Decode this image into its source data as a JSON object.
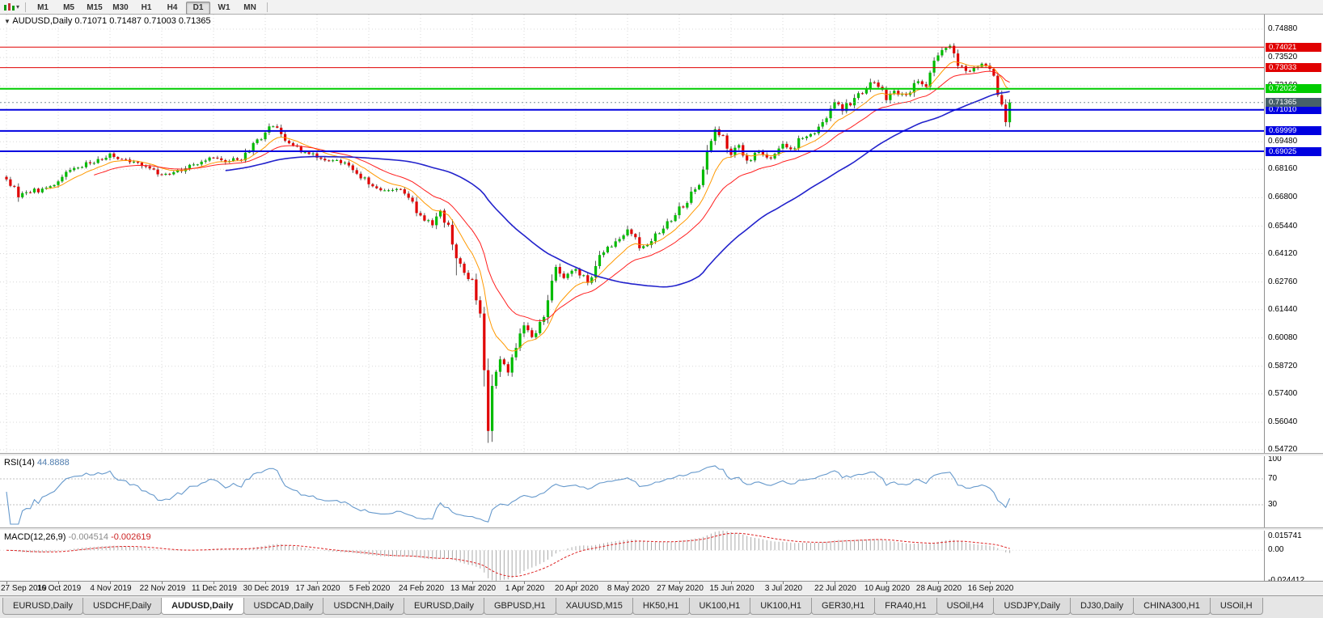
{
  "toolbar": {
    "timeframes": [
      "M1",
      "M5",
      "M15",
      "M30",
      "H1",
      "H4",
      "D1",
      "W1",
      "MN"
    ],
    "active_timeframe": "D1"
  },
  "chart": {
    "symbol": "AUDUSD,Daily",
    "ohlc": "0.71071 0.71487 0.71003 0.71365",
    "y_max": 0.7488,
    "y_min": 0.5472,
    "plain_price_labels": [
      "0.74880",
      "0.73520",
      "0.72160",
      "0.69480",
      "0.68160",
      "0.66800",
      "0.65440",
      "0.64120",
      "0.62760",
      "0.61440",
      "0.60080",
      "0.58720",
      "0.57400",
      "0.56040",
      "0.54720"
    ],
    "lines": [
      {
        "price": 0.74021,
        "label": "0.74021",
        "color": "#e00000",
        "width": 1
      },
      {
        "price": 0.73033,
        "label": "0.73033",
        "color": "#e00000",
        "width": 1
      },
      {
        "price": 0.72022,
        "label": "0.72022",
        "color": "#00cc00",
        "width": 2
      },
      {
        "price": 0.7101,
        "label": "0.71010",
        "color": "#0000e0",
        "width": 2
      },
      {
        "price": 0.69999,
        "label": "0.69999",
        "color": "#0000e0",
        "width": 2
      },
      {
        "price": 0.69025,
        "label": "0.69025",
        "color": "#0000e0",
        "width": 2
      }
    ],
    "bid_line": {
      "price": 0.71365,
      "label": "0.71365",
      "color": "#46606a"
    }
  },
  "rsi": {
    "name": "RSI(14)",
    "value": "44.8888",
    "axis": [
      "100",
      "70",
      "30"
    ],
    "levels": [
      70,
      30
    ],
    "color": "#6699cc"
  },
  "macd": {
    "name": "MACD(12,26,9)",
    "main_value": "-0.004514",
    "signal_value": "-0.002619",
    "range": [
      -0.024412,
      0.015741
    ],
    "axis": [
      [
        "0.015741",
        0.015741
      ],
      [
        "0.00",
        0
      ],
      [
        "-0.024412",
        -0.024412
      ]
    ]
  },
  "tabs": {
    "items": [
      "EURUSD,Daily",
      "USDCHF,Daily",
      "AUDUSD,Daily",
      "USDCAD,Daily",
      "USDCNH,Daily",
      "EURUSD,Daily",
      "GBPUSD,H1",
      "XAUUSD,M15",
      "HK50,H1",
      "UK100,H1",
      "UK100,H1",
      "GER30,H1",
      "FRA40,H1",
      "USOil,H4",
      "USDJPY,Daily",
      "DJ30,Daily",
      "CHINA300,H1",
      "USOil,H"
    ],
    "active_index": 2
  },
  "chart_data": {
    "type": "candlestick",
    "symbol": "AUDUSD",
    "timeframe": "Daily",
    "n_candles": 253,
    "y_range": [
      0.5472,
      0.7488
    ],
    "x_tick_labels": [
      "27 Sep 2019",
      "16 Oct 2019",
      "4 Nov 2019",
      "22 Nov 2019",
      "11 Dec 2019",
      "30 Dec 2019",
      "17 Jan 2020",
      "5 Feb 2020",
      "24 Feb 2020",
      "13 Mar 2020",
      "1 Apr 2020",
      "20 Apr 2020",
      "8 May 2020",
      "27 May 2020",
      "15 Jun 2020",
      "3 Jul 2020",
      "22 Jul 2020",
      "10 Aug 2020",
      "28 Aug 2020",
      "16 Sep 2020"
    ],
    "close_anchors": [
      [
        0,
        0.6768
      ],
      [
        3,
        0.6682
      ],
      [
        6,
        0.6705
      ],
      [
        10,
        0.6728
      ],
      [
        13,
        0.6758
      ],
      [
        17,
        0.6822
      ],
      [
        21,
        0.6845
      ],
      [
        24,
        0.6862
      ],
      [
        26,
        0.6892
      ],
      [
        29,
        0.6865
      ],
      [
        33,
        0.6848
      ],
      [
        36,
        0.682
      ],
      [
        39,
        0.679
      ],
      [
        42,
        0.6802
      ],
      [
        46,
        0.6838
      ],
      [
        50,
        0.6858
      ],
      [
        52,
        0.6872
      ],
      [
        55,
        0.685
      ],
      [
        58,
        0.6862
      ],
      [
        61,
        0.69
      ],
      [
        65,
        0.6992
      ],
      [
        67,
        0.7022
      ],
      [
        69,
        0.6985
      ],
      [
        72,
        0.693
      ],
      [
        75,
        0.6898
      ],
      [
        78,
        0.6872
      ],
      [
        81,
        0.6858
      ],
      [
        84,
        0.6846
      ],
      [
        87,
        0.6812
      ],
      [
        91,
        0.6745
      ],
      [
        94,
        0.6715
      ],
      [
        98,
        0.6722
      ],
      [
        101,
        0.668
      ],
      [
        104,
        0.6595
      ],
      [
        107,
        0.6548
      ],
      [
        109,
        0.6618
      ],
      [
        111,
        0.655
      ],
      [
        113,
        0.639
      ],
      [
        115,
        0.632
      ],
      [
        117,
        0.6288
      ],
      [
        119,
        0.6125
      ],
      [
        121,
        0.5562
      ],
      [
        122,
        0.5778
      ],
      [
        124,
        0.5905
      ],
      [
        126,
        0.5842
      ],
      [
        128,
        0.596
      ],
      [
        130,
        0.6068
      ],
      [
        132,
        0.6012
      ],
      [
        134,
        0.6085
      ],
      [
        136,
        0.6188
      ],
      [
        138,
        0.6348
      ],
      [
        140,
        0.6295
      ],
      [
        143,
        0.6338
      ],
      [
        146,
        0.6272
      ],
      [
        148,
        0.6352
      ],
      [
        151,
        0.6445
      ],
      [
        154,
        0.6482
      ],
      [
        156,
        0.6528
      ],
      [
        159,
        0.6438
      ],
      [
        162,
        0.6472
      ],
      [
        165,
        0.6532
      ],
      [
        167,
        0.6568
      ],
      [
        169,
        0.6638
      ],
      [
        171,
        0.6655
      ],
      [
        173,
        0.672
      ],
      [
        175,
        0.6815
      ],
      [
        177,
        0.6952
      ],
      [
        178,
        0.7008
      ],
      [
        180,
        0.6978
      ],
      [
        182,
        0.6885
      ],
      [
        184,
        0.6932
      ],
      [
        186,
        0.6858
      ],
      [
        189,
        0.6902
      ],
      [
        192,
        0.6868
      ],
      [
        195,
        0.6938
      ],
      [
        197,
        0.6912
      ],
      [
        199,
        0.6965
      ],
      [
        202,
        0.6985
      ],
      [
        205,
        0.7042
      ],
      [
        208,
        0.7138
      ],
      [
        210,
        0.7095
      ],
      [
        213,
        0.7158
      ],
      [
        216,
        0.7202
      ],
      [
        218,
        0.7232
      ],
      [
        221,
        0.7148
      ],
      [
        223,
        0.7192
      ],
      [
        226,
        0.7172
      ],
      [
        229,
        0.7238
      ],
      [
        231,
        0.7212
      ],
      [
        234,
        0.7362
      ],
      [
        236,
        0.7398
      ],
      [
        237,
        0.7408
      ],
      [
        239,
        0.7312
      ],
      [
        241,
        0.7288
      ],
      [
        243,
        0.7302
      ],
      [
        245,
        0.7322
      ],
      [
        247,
        0.7298
      ],
      [
        249,
        0.7172
      ],
      [
        251,
        0.7042
      ],
      [
        252,
        0.71365
      ]
    ],
    "wick_lows": {
      "113": 0.6308,
      "121": 0.5505
    },
    "wick_highs": {
      "237": 0.7414
    },
    "colors": {
      "up": "#00bb00",
      "down": "#e00000",
      "wick": "#303030"
    },
    "moving_averages": [
      {
        "period": 10,
        "type": "ema",
        "color": "#ff9900"
      },
      {
        "period": 22,
        "type": "ema",
        "color": "#ff2020"
      },
      {
        "period": 55,
        "type": "sma",
        "color": "#2222cc"
      }
    ]
  }
}
